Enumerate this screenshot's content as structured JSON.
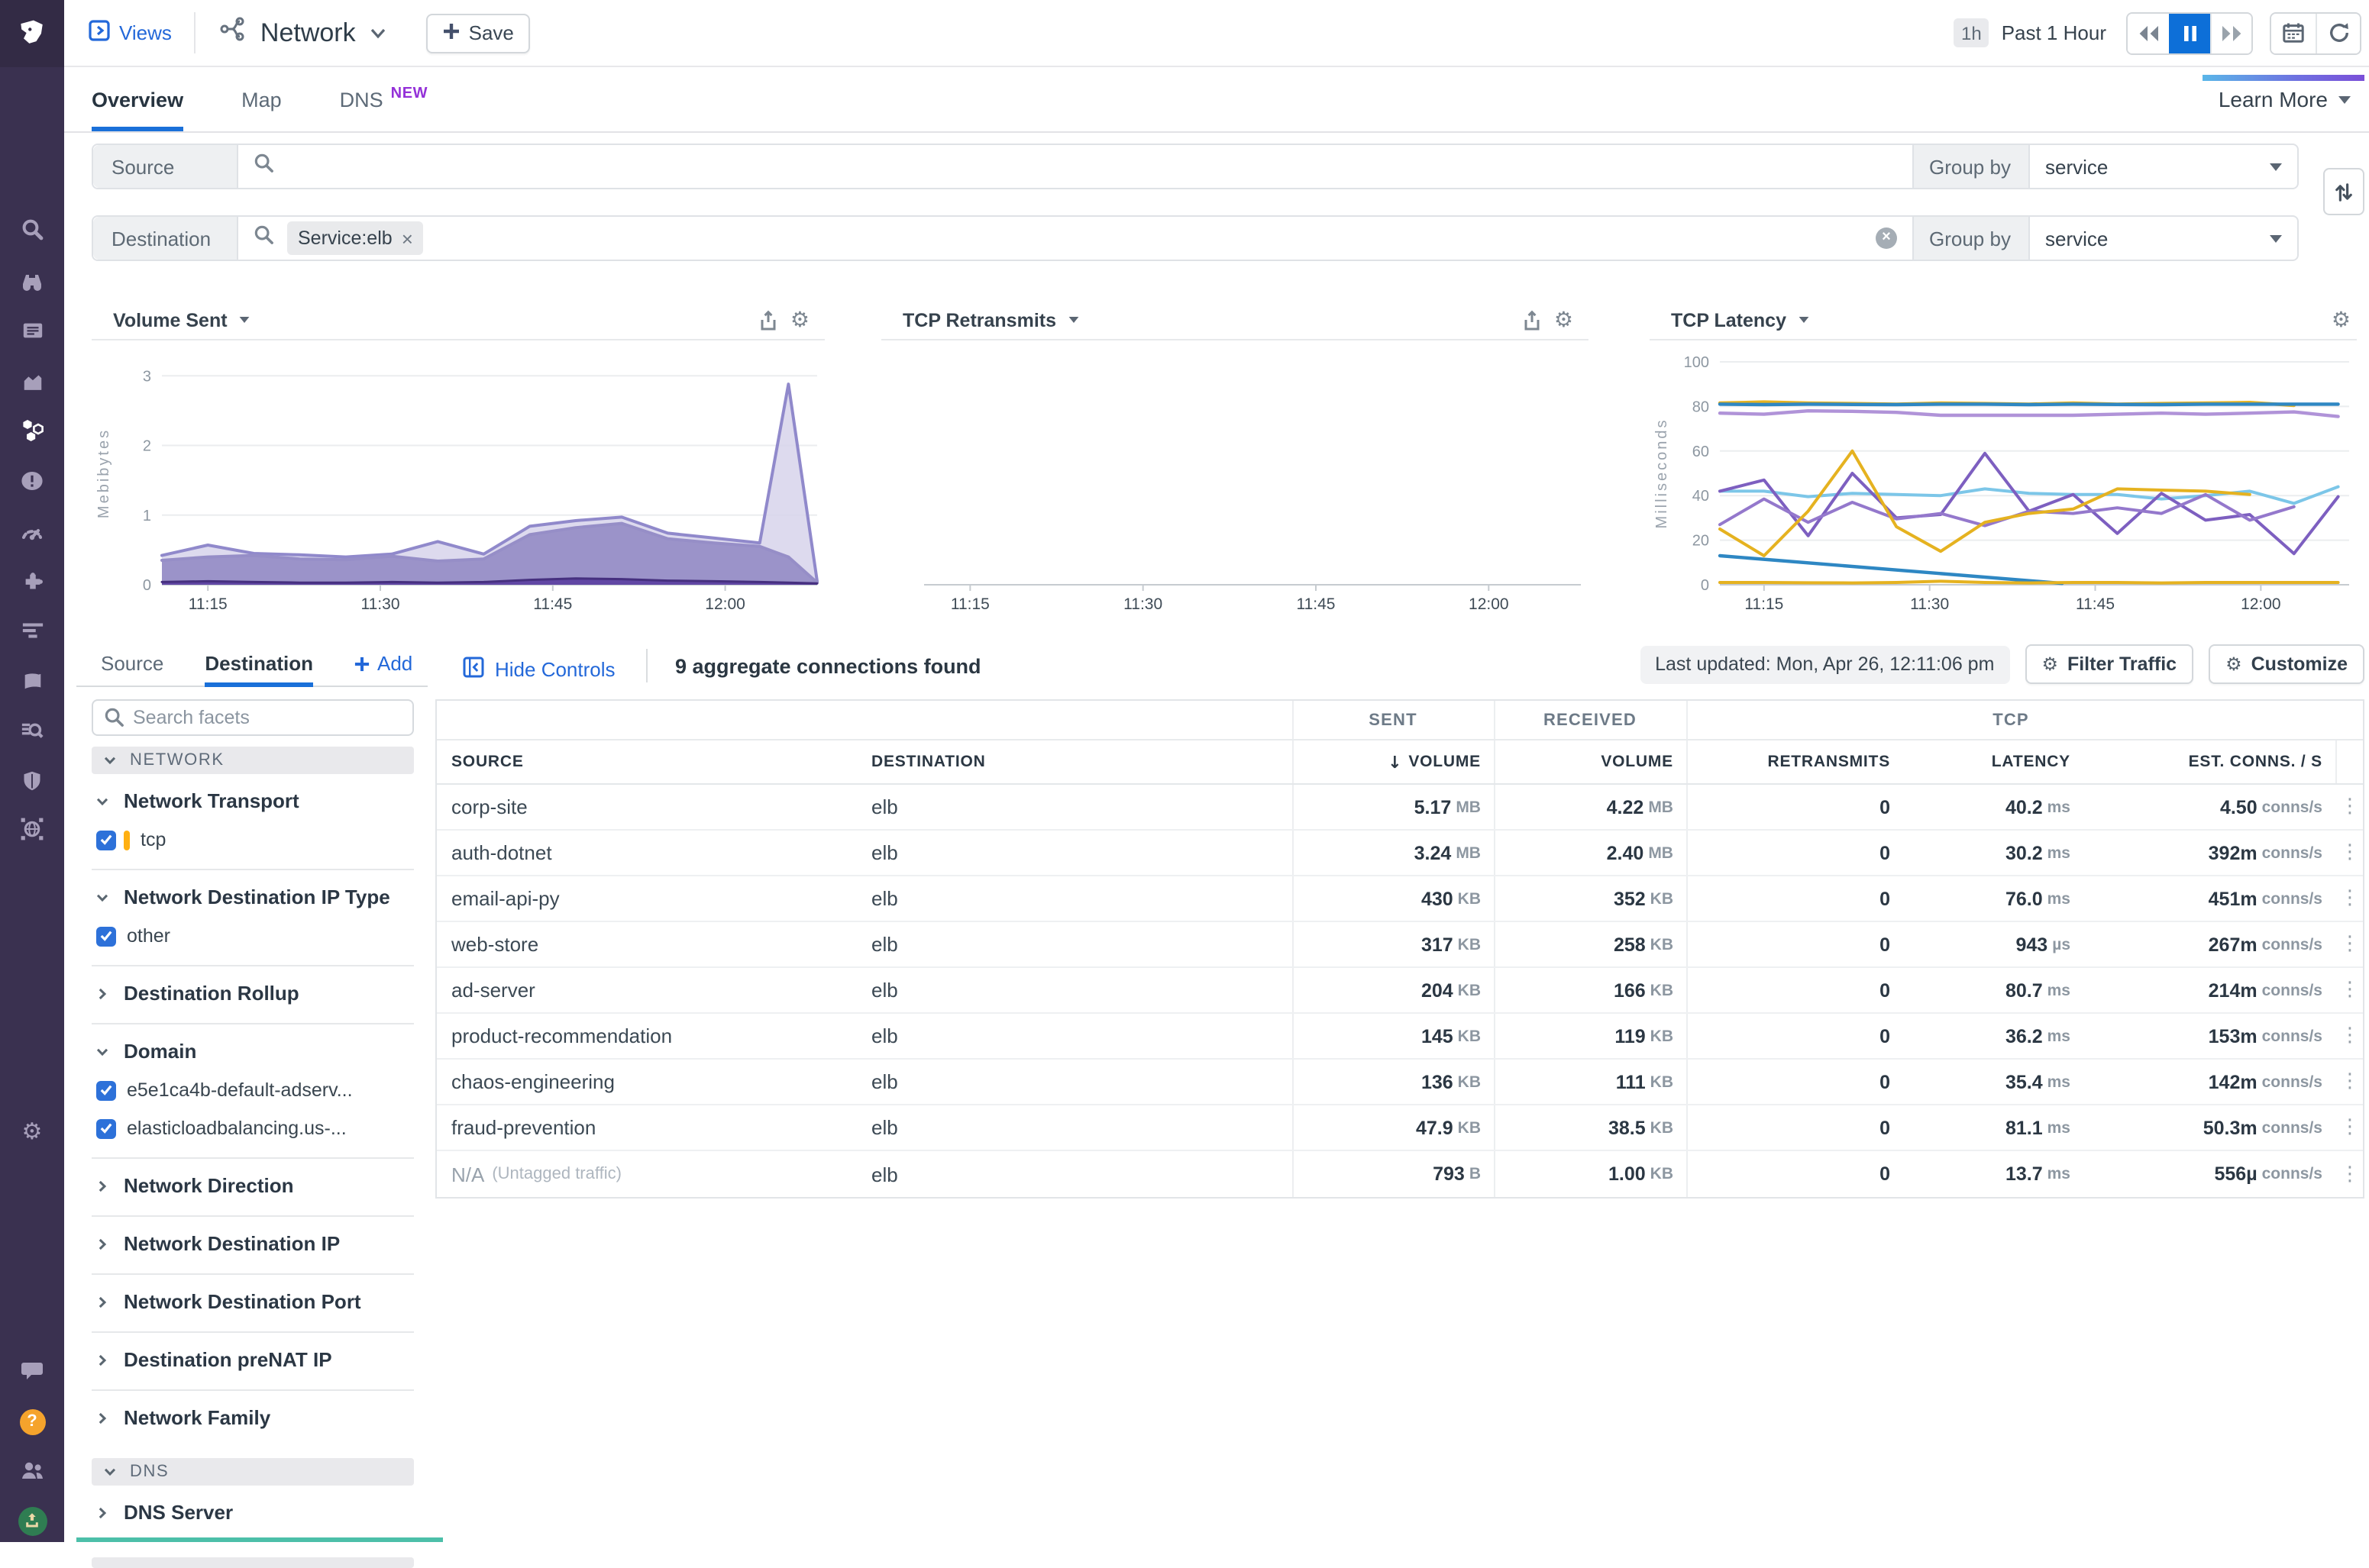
{
  "header": {
    "views_label": "Views",
    "title": "Network",
    "save_label": "Save",
    "time_preset": "1h",
    "time_label": "Past 1 Hour"
  },
  "tabs": {
    "items": [
      {
        "label": "Overview",
        "active": true
      },
      {
        "label": "Map",
        "active": false
      },
      {
        "label": "DNS",
        "active": false,
        "badge": "NEW"
      }
    ],
    "learn_more": "Learn More"
  },
  "query": {
    "source": {
      "label": "Source",
      "group_by_label": "Group by",
      "group_by_value": "service"
    },
    "destination": {
      "label": "Destination",
      "filter_chip": "Service:elb",
      "group_by_label": "Group by",
      "group_by_value": "service"
    }
  },
  "controls": {
    "panel_tabs": [
      {
        "label": "Source",
        "active": false
      },
      {
        "label": "Destination",
        "active": true
      }
    ],
    "add_label": "Add",
    "hide_controls": "Hide Controls",
    "results_summary": "9 aggregate connections found",
    "last_updated": "Last updated: Mon, Apr 26, 12:11:06 pm",
    "filter_traffic": "Filter Traffic",
    "customize": "Customize"
  },
  "facets": {
    "search_placeholder": "Search facets",
    "sections": [
      {
        "kind": "group",
        "label": "NETWORK"
      },
      {
        "kind": "facet",
        "label": "Network Transport",
        "expanded": true,
        "options": [
          {
            "label": "tcp",
            "checked": true,
            "marker": "#ffb012"
          }
        ]
      },
      {
        "kind": "facet",
        "label": "Network Destination IP Type",
        "expanded": true,
        "options": [
          {
            "label": "other",
            "checked": true
          }
        ]
      },
      {
        "kind": "facet",
        "label": "Destination Rollup",
        "expanded": false
      },
      {
        "kind": "facet",
        "label": "Domain",
        "expanded": true,
        "options": [
          {
            "label": "e5e1ca4b-default-adserv...",
            "checked": true
          },
          {
            "label": "elasticloadbalancing.us-...",
            "checked": true
          }
        ]
      },
      {
        "kind": "facet",
        "label": "Network Direction",
        "expanded": false
      },
      {
        "kind": "facet",
        "label": "Network Destination IP",
        "expanded": false
      },
      {
        "kind": "facet",
        "label": "Network Destination Port",
        "expanded": false
      },
      {
        "kind": "facet",
        "label": "Destination preNAT IP",
        "expanded": false
      },
      {
        "kind": "facet",
        "label": "Network Family",
        "expanded": false
      },
      {
        "kind": "group",
        "label": "DNS"
      },
      {
        "kind": "facet",
        "label": "DNS Server",
        "expanded": false
      },
      {
        "kind": "group_partial",
        "label": ""
      }
    ]
  },
  "table": {
    "group_headers": [
      {
        "label": ""
      },
      {
        "label": "SENT"
      },
      {
        "label": "RECEIVED"
      },
      {
        "label": "TCP"
      },
      {
        "label": ""
      }
    ],
    "columns": [
      "SOURCE",
      "DESTINATION",
      "VOLUME",
      "VOLUME",
      "RETRANSMITS",
      "LATENCY",
      "EST. CONNS. / S"
    ],
    "sort": {
      "column": "SENT VOLUME",
      "direction": "desc"
    },
    "rows": [
      {
        "source": "corp-site",
        "destination": "elb",
        "sent": [
          "5.17",
          "MB"
        ],
        "received": [
          "4.22",
          "MB"
        ],
        "retransmits": "0",
        "latency": [
          "40.2",
          "ms"
        ],
        "est": [
          "4.50",
          "conns/s"
        ]
      },
      {
        "source": "auth-dotnet",
        "destination": "elb",
        "sent": [
          "3.24",
          "MB"
        ],
        "received": [
          "2.40",
          "MB"
        ],
        "retransmits": "0",
        "latency": [
          "30.2",
          "ms"
        ],
        "est": [
          "392m",
          "conns/s"
        ]
      },
      {
        "source": "email-api-py",
        "destination": "elb",
        "sent": [
          "430",
          "KB"
        ],
        "received": [
          "352",
          "KB"
        ],
        "retransmits": "0",
        "latency": [
          "76.0",
          "ms"
        ],
        "est": [
          "451m",
          "conns/s"
        ]
      },
      {
        "source": "web-store",
        "destination": "elb",
        "sent": [
          "317",
          "KB"
        ],
        "received": [
          "258",
          "KB"
        ],
        "retransmits": "0",
        "latency": [
          "943",
          "µs"
        ],
        "est": [
          "267m",
          "conns/s"
        ]
      },
      {
        "source": "ad-server",
        "destination": "elb",
        "sent": [
          "204",
          "KB"
        ],
        "received": [
          "166",
          "KB"
        ],
        "retransmits": "0",
        "latency": [
          "80.7",
          "ms"
        ],
        "est": [
          "214m",
          "conns/s"
        ]
      },
      {
        "source": "product-recommendation",
        "destination": "elb",
        "sent": [
          "145",
          "KB"
        ],
        "received": [
          "119",
          "KB"
        ],
        "retransmits": "0",
        "latency": [
          "36.2",
          "ms"
        ],
        "est": [
          "153m",
          "conns/s"
        ]
      },
      {
        "source": "chaos-engineering",
        "destination": "elb",
        "sent": [
          "136",
          "KB"
        ],
        "received": [
          "111",
          "KB"
        ],
        "retransmits": "0",
        "latency": [
          "35.4",
          "ms"
        ],
        "est": [
          "142m",
          "conns/s"
        ]
      },
      {
        "source": "fraud-prevention",
        "destination": "elb",
        "sent": [
          "47.9",
          "KB"
        ],
        "received": [
          "38.5",
          "KB"
        ],
        "retransmits": "0",
        "latency": [
          "81.1",
          "ms"
        ],
        "est": [
          "50.3m",
          "conns/s"
        ]
      },
      {
        "source": "N/A",
        "source_note": "(Untagged traffic)",
        "destination": "elb",
        "sent": [
          "793",
          "B"
        ],
        "received": [
          "1.00",
          "KB"
        ],
        "retransmits": "0",
        "latency": [
          "13.7",
          "ms"
        ],
        "est": [
          "556µ",
          "conns/s"
        ]
      }
    ]
  },
  "nav_rail": {
    "active": "service-map",
    "items": [
      "datadog-logo",
      "search",
      "watchdog",
      "dashboards",
      "metrics",
      "service-map",
      "monitors",
      "synthetics",
      "integrations",
      "apm",
      "notebooks",
      "logs",
      "security",
      "network"
    ],
    "utility": [
      "settings"
    ],
    "bottom": [
      "chat",
      "help",
      "users",
      "upgrade"
    ]
  },
  "chart_data": [
    {
      "type": "area",
      "title": "Volume Sent",
      "ylabel": "Mebibytes",
      "ylim": [
        0,
        3.2
      ],
      "yticks": [
        0,
        1,
        2,
        3
      ],
      "xlim": [
        11,
        68
      ],
      "xticks": [
        15,
        30,
        45,
        60
      ],
      "xtick_labels": [
        "11:15",
        "11:30",
        "11:45",
        "12:00"
      ],
      "x_unit": "minutes after 11:00",
      "series": [
        {
          "name": "volume-upper-band",
          "color": "#9089cb",
          "fill": "#d7d3eb",
          "fill_opacity": 0.85,
          "width": 2,
          "x": [
            11,
            15,
            19,
            23,
            27,
            31,
            35,
            39,
            43,
            47,
            51,
            55,
            59,
            63,
            65.5,
            68
          ],
          "values": [
            0.42,
            0.57,
            0.45,
            0.43,
            0.4,
            0.44,
            0.62,
            0.44,
            0.84,
            0.92,
            0.97,
            0.74,
            0.67,
            0.6,
            2.88,
            0.05
          ]
        },
        {
          "name": "volume-mid-band",
          "color": "#968ec7",
          "fill": "#938bc4",
          "fill_opacity": 0.9,
          "width": 2,
          "x": [
            11,
            15,
            19,
            23,
            27,
            31,
            35,
            39,
            43,
            47,
            51,
            55,
            59,
            63,
            65.5,
            68
          ],
          "values": [
            0.35,
            0.4,
            0.42,
            0.37,
            0.36,
            0.41,
            0.34,
            0.37,
            0.72,
            0.82,
            0.88,
            0.66,
            0.6,
            0.55,
            0.4,
            0.03
          ]
        },
        {
          "name": "volume-low-band",
          "color": "#46307f",
          "fill": "#5b3fa0",
          "fill_opacity": 0.9,
          "width": 1.5,
          "x": [
            11,
            15,
            19,
            23,
            27,
            31,
            35,
            39,
            43,
            47,
            51,
            55,
            59,
            63,
            65.5,
            68
          ],
          "values": [
            0.04,
            0.05,
            0.04,
            0.03,
            0.03,
            0.04,
            0.03,
            0.04,
            0.07,
            0.09,
            0.08,
            0.06,
            0.05,
            0.04,
            0.03,
            0.02
          ]
        }
      ]
    },
    {
      "type": "line",
      "title": "TCP Retransmits",
      "xlim": [
        11,
        68
      ],
      "xticks": [
        15,
        30,
        45,
        60
      ],
      "xtick_labels": [
        "11:15",
        "11:30",
        "11:45",
        "12:00"
      ],
      "x_unit": "minutes after 11:00",
      "series": []
    },
    {
      "type": "line",
      "title": "TCP Latency",
      "ylabel": "Milliseconds",
      "ylim": [
        0,
        100
      ],
      "yticks": [
        0,
        20,
        40,
        60,
        80,
        100
      ],
      "xlim": [
        11,
        68
      ],
      "xticks": [
        15,
        30,
        45,
        60
      ],
      "xtick_labels": [
        "11:15",
        "11:30",
        "11:45",
        "12:00"
      ],
      "x_unit": "minutes after 11:00",
      "series": [
        {
          "name": "latency-yellow-flat-high",
          "color": "#e5b220",
          "width": 2.2,
          "x": [
            11,
            15,
            19,
            23,
            27,
            31,
            35,
            39,
            43,
            47,
            51,
            55,
            59,
            63
          ],
          "values": [
            81.5,
            82,
            81.5,
            81.3,
            81,
            81.5,
            81.3,
            81,
            81.5,
            81,
            81.3,
            81.5,
            81.8,
            80.5
          ]
        },
        {
          "name": "latency-blue-flat-high",
          "color": "#2e87c3",
          "width": 2.2,
          "x": [
            11,
            15,
            19,
            23,
            27,
            31,
            35,
            39,
            43,
            47,
            51,
            55,
            59,
            63,
            67
          ],
          "values": [
            81,
            80.8,
            81,
            80.9,
            80.8,
            81,
            81,
            80.8,
            81,
            80.9,
            80.8,
            81,
            81,
            81,
            81
          ]
        },
        {
          "name": "latency-lavender-high",
          "color": "#b093d8",
          "width": 2.2,
          "x": [
            11,
            15,
            19,
            23,
            27,
            31,
            35,
            39,
            43,
            47,
            51,
            55,
            59,
            63,
            67
          ],
          "values": [
            77,
            76.5,
            78,
            77.8,
            77.3,
            76,
            76,
            76,
            76,
            76.5,
            77,
            76.5,
            77,
            77.5,
            75.5
          ]
        },
        {
          "name": "latency-sky",
          "color": "#7cc6e8",
          "width": 2,
          "x": [
            11,
            15,
            19,
            23,
            27,
            31,
            35,
            39,
            43,
            47,
            51,
            55,
            59,
            63,
            67
          ],
          "values": [
            42,
            42,
            39.5,
            41,
            40.5,
            40,
            43,
            41,
            40.5,
            40.5,
            38.5,
            40,
            42,
            36.5,
            44
          ]
        },
        {
          "name": "latency-purple-a",
          "color": "#7d5fc0",
          "width": 2,
          "x": [
            11,
            15,
            19,
            23,
            27,
            31,
            35,
            39,
            43,
            47,
            51,
            55,
            59,
            63,
            67
          ],
          "values": [
            42,
            47,
            22,
            50,
            30,
            31.5,
            59,
            33,
            40.5,
            23,
            41,
            29,
            31.5,
            14,
            39.5
          ]
        },
        {
          "name": "latency-purple-b",
          "color": "#9478cc",
          "width": 2,
          "x": [
            11,
            15,
            19,
            23,
            27,
            31,
            35,
            39,
            43,
            47,
            51,
            55,
            59,
            63
          ],
          "values": [
            27,
            38.5,
            28,
            37,
            29.5,
            32,
            26.5,
            33,
            32,
            34.5,
            32,
            40.5,
            29,
            35
          ]
        },
        {
          "name": "latency-gold-jagged",
          "color": "#e5b220",
          "width": 2,
          "x": [
            11,
            15,
            19,
            23,
            27,
            31,
            35,
            39,
            43,
            47,
            51,
            55,
            59
          ],
          "values": [
            25,
            13,
            33,
            60,
            26,
            15,
            28,
            32,
            34,
            43,
            42.5,
            42,
            40.5
          ]
        },
        {
          "name": "latency-blue-descending",
          "color": "#2e87c3",
          "width": 2.2,
          "x": [
            11,
            42
          ],
          "values": [
            13,
            0.6
          ]
        },
        {
          "name": "latency-yellow-flat-low",
          "color": "#e5b220",
          "width": 2,
          "x": [
            11,
            15,
            19,
            23,
            27,
            31,
            35,
            39,
            43,
            47,
            51,
            55,
            59,
            63,
            67
          ],
          "values": [
            1,
            1,
            0.9,
            0.8,
            1,
            1.6,
            1,
            0.8,
            1,
            1,
            0.8,
            1,
            1,
            1,
            1
          ]
        }
      ]
    }
  ]
}
